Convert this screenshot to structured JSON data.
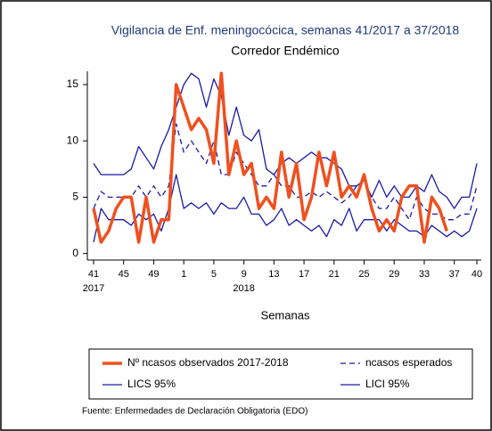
{
  "chart_data": {
    "type": "line",
    "title": "Vigilancia de Enf. meningocócica, semanas 41/2017 a 37/2018",
    "subtitle": "Corredor Endémico",
    "x_label": "Semanas",
    "source": "Fuente: Enfermedades de Declaración Obligatoria (EDO)",
    "categories": [
      "41",
      null,
      null,
      null,
      "45",
      null,
      null,
      null,
      "49",
      null,
      null,
      null,
      "1",
      null,
      null,
      null,
      "5",
      null,
      null,
      null,
      "9",
      null,
      null,
      null,
      "13",
      null,
      null,
      null,
      "17",
      null,
      null,
      null,
      "21",
      null,
      null,
      null,
      "25",
      null,
      null,
      null,
      "29",
      null,
      null,
      null,
      "33",
      null,
      null,
      null,
      "37",
      null,
      null,
      "40"
    ],
    "category_years": [
      "2017",
      null,
      null,
      null,
      null,
      null,
      null,
      null,
      null,
      null,
      null,
      null,
      null,
      null,
      null,
      null,
      null,
      null,
      null,
      null,
      "2018",
      null,
      null,
      null,
      null,
      null,
      null,
      null,
      null,
      null,
      null,
      null,
      null,
      null,
      null,
      null,
      null,
      null,
      null,
      null,
      null,
      null,
      null,
      null,
      null,
      null,
      null,
      null,
      null,
      null,
      null,
      null
    ],
    "ylim": [
      -0.5,
      16.5
    ],
    "yticks": [
      0,
      5,
      10,
      15
    ],
    "series": [
      {
        "name": "Nº ncasos observados 2017-2018",
        "color": "#f0501e",
        "width": 3.5,
        "dash": false,
        "values": [
          4,
          1,
          2,
          4,
          5,
          5,
          1,
          5,
          1,
          3,
          3,
          15,
          13,
          11,
          12,
          11,
          8,
          16,
          7,
          10,
          7,
          8,
          4,
          5,
          4,
          9,
          5,
          8,
          3,
          5,
          9,
          6,
          9,
          5,
          6,
          5,
          7,
          4,
          2,
          3,
          2,
          5,
          6,
          6,
          1,
          5,
          4,
          2,
          null,
          null,
          null,
          null
        ]
      },
      {
        "name": "ncasos esperados",
        "color": "#1a1aa8",
        "width": 1.3,
        "dash": true,
        "values": [
          4,
          5.5,
          5,
          5,
          5,
          5,
          6,
          5,
          6,
          5,
          6,
          11.5,
          9,
          10,
          9,
          8,
          10,
          7,
          7,
          9,
          8,
          7,
          6,
          6,
          7,
          6,
          6,
          5,
          5,
          5.5,
          5,
          5.5,
          5,
          4.5,
          5,
          6,
          6.5,
          5,
          4,
          4,
          5,
          4,
          3,
          5,
          4,
          3.5,
          3.5,
          3,
          3,
          3.5,
          3.5,
          6
        ]
      },
      {
        "name": "LICS 95%",
        "color": "#1a1aa8",
        "width": 1.3,
        "dash": false,
        "values": [
          8,
          7,
          7,
          7,
          7,
          7.5,
          9.5,
          8.5,
          7.5,
          9.5,
          11,
          13,
          15,
          16,
          15.5,
          13,
          15.5,
          14,
          10.5,
          13,
          10.5,
          10,
          11,
          7.5,
          7,
          8,
          8.5,
          8,
          8.5,
          9,
          8.5,
          8.5,
          8,
          7.5,
          6,
          6,
          6.5,
          5,
          6.5,
          5,
          6,
          5,
          5,
          6,
          5.5,
          7,
          5.5,
          5,
          4,
          5,
          5,
          8
        ]
      },
      {
        "name": "LICI 95%",
        "color": "#1a1aa8",
        "width": 1.3,
        "dash": false,
        "values": [
          1,
          4,
          3,
          3,
          3,
          2.5,
          3.5,
          3,
          3.5,
          2,
          4,
          7,
          4,
          4.5,
          4,
          4.5,
          3.5,
          4.5,
          4,
          4,
          5,
          3.5,
          3.5,
          2.5,
          3,
          4,
          2.5,
          3,
          2.5,
          2,
          2.5,
          1.5,
          3,
          2.5,
          4,
          2,
          3,
          3,
          3,
          2,
          3,
          2.5,
          2,
          2,
          1.5,
          2.5,
          2,
          1.5,
          2,
          1.5,
          2,
          4
        ]
      }
    ]
  }
}
